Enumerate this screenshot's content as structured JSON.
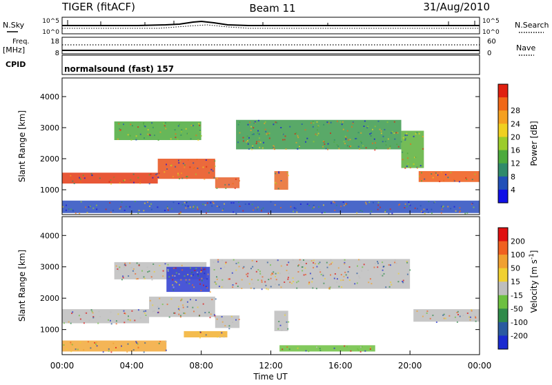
{
  "header": {
    "title": "TIGER (fitACF)",
    "beam": "Beam 11",
    "date": "31/Aug/2010"
  },
  "summary_panels": {
    "nsky_label": "N.Sky",
    "nsearch_label": "N.Search",
    "freq_label_line1": "Freq.",
    "freq_label_line2": "[MHz]",
    "nave_label": "Nave",
    "cpid_label": "CPID",
    "cpid_text": "normalsound (fast) 157",
    "noise_ticks": [
      "10^5",
      "10^0"
    ],
    "freq_ticks": [
      "18",
      "8"
    ],
    "nave_ticks": [
      "60",
      "0"
    ]
  },
  "chart_data": [
    {
      "type": "heatmap",
      "panel": "power",
      "ylabel": "Slant Range [km]",
      "xlabel": "",
      "ylim": [
        200,
        4600
      ],
      "yticks": [
        "1000",
        "2000",
        "3000",
        "4000"
      ],
      "colorbar_label": "Power [dB]",
      "colorbar_ticks": [
        "4",
        "8",
        "12",
        "16",
        "20",
        "24",
        "28"
      ],
      "colorbar_colors": [
        "#1010e6",
        "#2150b8",
        "#2f8a6a",
        "#4caa3c",
        "#9ccc2a",
        "#f0d020",
        "#f5a020",
        "#f06818",
        "#e02010"
      ],
      "echo_regions": [
        {
          "start_h": 0.0,
          "end_h": 5.5,
          "bottom_km": 1200,
          "top_km": 1550,
          "color": "#e43a14"
        },
        {
          "start_h": 5.5,
          "end_h": 8.8,
          "bottom_km": 1350,
          "top_km": 2000,
          "color": "#e8501a"
        },
        {
          "start_h": 20.5,
          "end_h": 24.0,
          "bottom_km": 1250,
          "top_km": 1600,
          "color": "#ee5a18"
        },
        {
          "start_h": 8.8,
          "end_h": 10.2,
          "bottom_km": 1050,
          "top_km": 1400,
          "color": "#e8602a"
        },
        {
          "start_h": 12.2,
          "end_h": 13.0,
          "bottom_km": 1000,
          "top_km": 1600,
          "color": "#e86a2a"
        },
        {
          "start_h": 3.0,
          "end_h": 8.0,
          "bottom_km": 2600,
          "top_km": 3200,
          "color": "#4caa3c"
        },
        {
          "start_h": 10.0,
          "end_h": 19.5,
          "bottom_km": 2300,
          "top_km": 3250,
          "color": "#3c9a4e"
        },
        {
          "start_h": 19.5,
          "end_h": 20.8,
          "bottom_km": 1700,
          "top_km": 2900,
          "color": "#5cb03a"
        },
        {
          "start_h": 0.0,
          "end_h": 24.0,
          "bottom_km": 250,
          "top_km": 650,
          "color": "#2a4ec0"
        }
      ]
    },
    {
      "type": "heatmap",
      "panel": "velocity",
      "ylabel": "Slant Range [km]",
      "xlabel": "Time UT",
      "ylim": [
        200,
        4600
      ],
      "yticks": [
        "1000",
        "2000",
        "3000",
        "4000"
      ],
      "xticks": [
        "00:00",
        "04:00",
        "08:00",
        "12:00",
        "16:00",
        "20:00",
        "00:00"
      ],
      "colorbar_label": "Velocity [m s^-1]",
      "colorbar_ticks": [
        "200",
        "100",
        "50",
        "15",
        "-15",
        "-50",
        "-100",
        "-200"
      ],
      "colorbar_colors": [
        "#1a2ad0",
        "#2a5aa0",
        "#2f8a4a",
        "#6cc040",
        "#bebebe",
        "#f0d030",
        "#f0a030",
        "#f06020",
        "#e01010"
      ],
      "echo_regions": [
        {
          "start_h": 0.0,
          "end_h": 5.0,
          "bottom_km": 1200,
          "top_km": 1650,
          "color": "#bdbdbd"
        },
        {
          "start_h": 5.0,
          "end_h": 8.8,
          "bottom_km": 1400,
          "top_km": 2050,
          "color": "#bdbdbd"
        },
        {
          "start_h": 8.5,
          "end_h": 20.0,
          "bottom_km": 2300,
          "top_km": 3250,
          "color": "#bdbdbd"
        },
        {
          "start_h": 20.2,
          "end_h": 24.0,
          "bottom_km": 1250,
          "top_km": 1650,
          "color": "#bdbdbd"
        },
        {
          "start_h": 8.8,
          "end_h": 10.2,
          "bottom_km": 1050,
          "top_km": 1450,
          "color": "#bdbdbd"
        },
        {
          "start_h": 12.2,
          "end_h": 13.0,
          "bottom_km": 950,
          "top_km": 1600,
          "color": "#bdbdbd"
        },
        {
          "start_h": 3.0,
          "end_h": 8.3,
          "bottom_km": 2600,
          "top_km": 3150,
          "color": "#bdbdbd"
        },
        {
          "start_h": 6.0,
          "end_h": 8.5,
          "bottom_km": 2200,
          "top_km": 3000,
          "color": "#2a3ad0"
        },
        {
          "start_h": 0.0,
          "end_h": 6.0,
          "bottom_km": 300,
          "top_km": 650,
          "color": "#f2a838"
        },
        {
          "start_h": 12.5,
          "end_h": 18.0,
          "bottom_km": 300,
          "top_km": 500,
          "color": "#6cc040"
        },
        {
          "start_h": 7.0,
          "end_h": 9.5,
          "bottom_km": 750,
          "top_km": 950,
          "color": "#f2b030"
        }
      ]
    }
  ]
}
